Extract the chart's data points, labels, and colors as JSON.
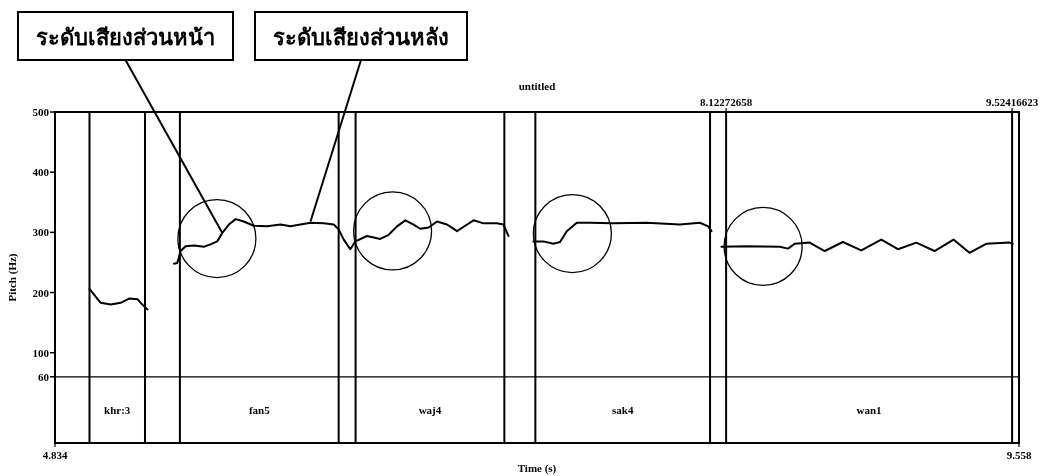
{
  "chart_data": {
    "type": "line",
    "title": "untitled",
    "xlabel": "Time (s)",
    "ylabel": "Pitch (Hz)",
    "xlim": [
      4.834,
      9.558
    ],
    "xticks": [
      4.834,
      9.558
    ],
    "x2lim": [
      4.834,
      9.558
    ],
    "x2ticks": [
      8.12272658,
      9.52416623
    ],
    "ylim": [
      -50,
      500
    ],
    "yticks": [
      60,
      100,
      200,
      300,
      400,
      500
    ],
    "marker": "none",
    "line_style": "solid",
    "series": [
      {
        "color": "#000000",
        "x": [
          5.003,
          5.034,
          5.058,
          5.107,
          5.156,
          5.197,
          5.238,
          5.262,
          5.287,
          5.35,
          5.417,
          5.433,
          5.45,
          5.474,
          5.515,
          5.564,
          5.596,
          5.629,
          5.654,
          5.686,
          5.719,
          5.759,
          5.808,
          5.874,
          5.939,
          5.988,
          6.037,
          6.086,
          6.151,
          6.2,
          6.224,
          6.249,
          6.281,
          6.306,
          6.363,
          6.428,
          6.469,
          6.51,
          6.551,
          6.591,
          6.624,
          6.665,
          6.706,
          6.755,
          6.804,
          6.844,
          6.885,
          6.934,
          6.999,
          7.032,
          7.056,
          7.12,
          7.178,
          7.227,
          7.276,
          7.309,
          7.342,
          7.391,
          7.456,
          7.57,
          7.733,
          7.896,
          7.994,
          8.035,
          8.051,
          8.075,
          8.1,
          8.223,
          8.386,
          8.426,
          8.459,
          8.532,
          8.606,
          8.695,
          8.785,
          8.883,
          8.965,
          9.055,
          9.144,
          9.237,
          9.315,
          9.397,
          9.511,
          9.527
        ],
        "values": [
          206,
          193,
          183,
          180,
          183,
          190,
          189,
          180,
          172,
          null,
          248,
          249,
          269,
          277,
          278,
          276,
          280,
          285,
          299,
          313,
          322,
          318,
          311,
          310,
          313,
          310,
          313,
          316,
          315,
          313,
          305,
          288,
          272,
          285,
          294,
          289,
          296,
          310,
          320,
          313,
          306,
          308,
          318,
          313,
          302,
          311,
          320,
          315,
          315,
          313,
          294,
          null,
          285,
          285,
          281,
          284,
          302,
          316,
          316,
          315,
          316,
          313,
          316,
          310,
          302,
          null,
          276,
          277,
          276,
          273,
          281,
          283,
          269,
          284,
          270,
          288,
          272,
          283,
          269,
          288,
          266,
          281,
          283,
          281
        ]
      }
    ],
    "ref_lines": [
      {
        "axis": "y",
        "value": 60
      },
      {
        "axis": "x",
        "value": 5.003
      },
      {
        "axis": "x",
        "value": 5.275
      },
      {
        "axis": "x",
        "value": 5.446
      },
      {
        "axis": "x",
        "value": 6.224
      },
      {
        "axis": "x",
        "value": 6.307
      },
      {
        "axis": "x",
        "value": 7.036
      },
      {
        "axis": "x",
        "value": 7.188
      },
      {
        "axis": "x",
        "value": 8.044
      },
      {
        "axis": "x",
        "value": 8.12272658
      },
      {
        "axis": "x",
        "value": 9.52416623
      }
    ],
    "annotations": [
      "khr:3",
      "fan5",
      "waj4",
      "sak4",
      "wan1",
      {
        "text": "ระดับเสียงส่วนหน้า",
        "x": 5.654,
        "y": 299
      },
      {
        "text": "ระดับเสียงส่วนหลัง",
        "x": 6.086,
        "y": 318
      }
    ]
  }
}
